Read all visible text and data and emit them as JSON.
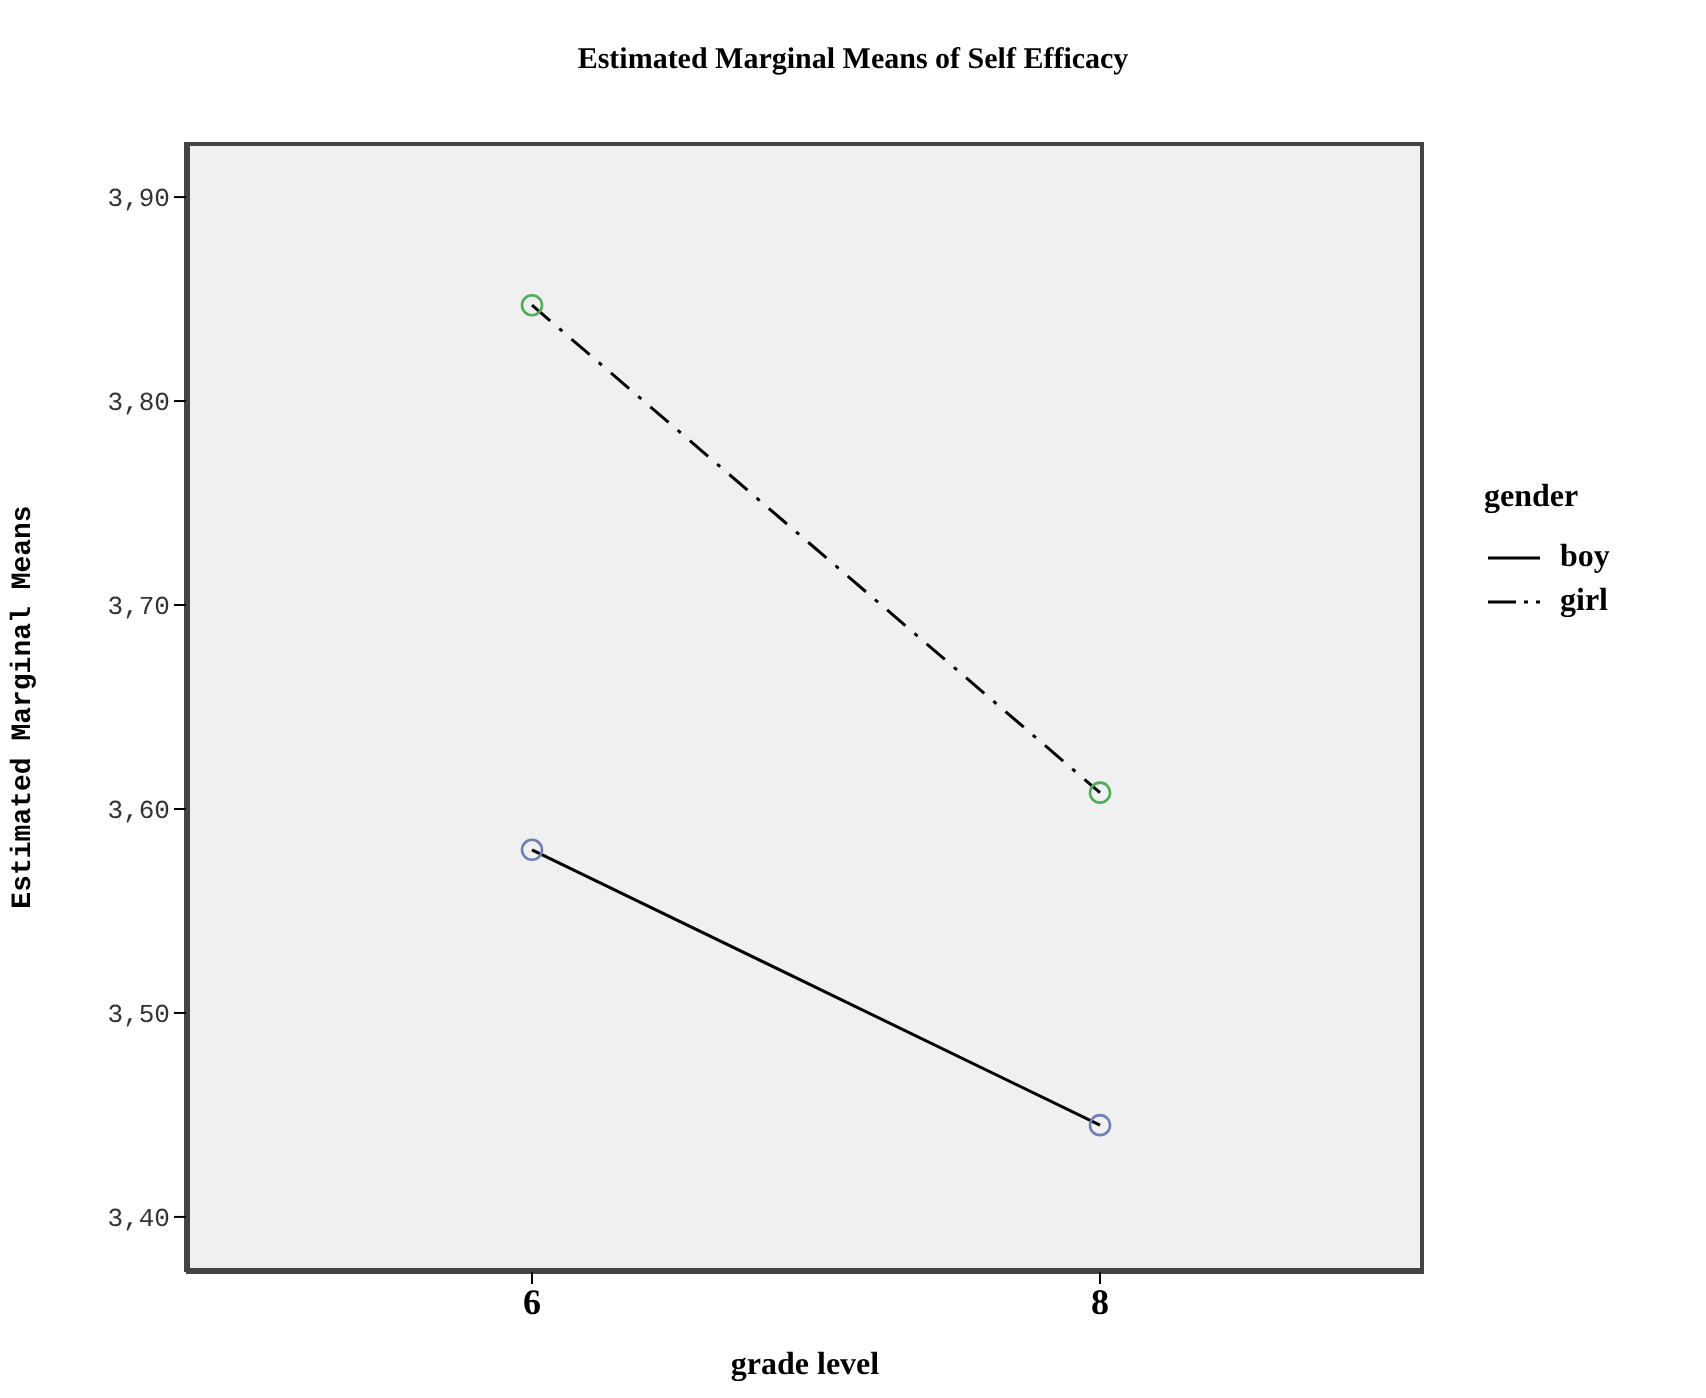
{
  "chart_data": {
    "type": "line",
    "title": "Estimated Marginal Means of Self Efficacy",
    "xlabel": "grade level",
    "ylabel": "Estimated Marginal Means",
    "legend_title": "gender",
    "categories": [
      "6",
      "8"
    ],
    "series": [
      {
        "name": "boy",
        "color": "#000000",
        "colors": [
          "#6d7fb8",
          "#6d7fb8"
        ],
        "line_style": "solid",
        "values": [
          3.58,
          3.445
        ]
      },
      {
        "name": "girl",
        "color": "#000000",
        "colors": [
          "#4caf50",
          "#4caf50"
        ],
        "line_style": "dashed",
        "values": [
          3.847,
          3.608
        ]
      }
    ],
    "ylim": [
      3.373,
      3.927
    ],
    "yticks": [
      {
        "value": 3.4,
        "label": "3,40"
      },
      {
        "value": 3.5,
        "label": "3,50"
      },
      {
        "value": 3.6,
        "label": "3,60"
      },
      {
        "value": 3.7,
        "label": "3,70"
      },
      {
        "value": 3.8,
        "label": "3,80"
      },
      {
        "value": 3.9,
        "label": "3,90"
      }
    ],
    "marker": "circle",
    "grid": false,
    "legend": "right"
  }
}
